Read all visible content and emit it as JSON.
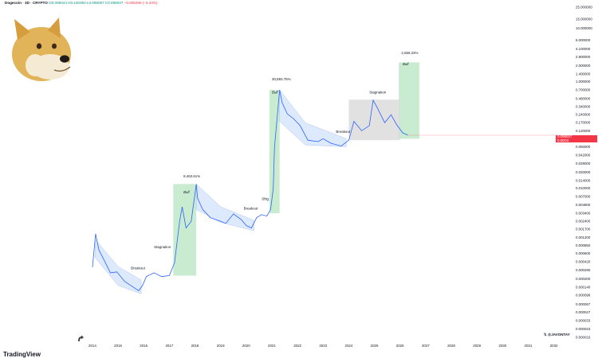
{
  "header": {
    "symbol": "Dogecoin · 3D · CRYPTO",
    "ohlc": "O0.099044 H0.100350 L0.098087 C0.099037",
    "change": "−0.005286 (−5.34%)"
  },
  "branding": {
    "platform": "TradingView",
    "author": "@JAVONTAY"
  },
  "current_price": {
    "label": "0.099037",
    "sub": "0.5D03",
    "color": "#f23645"
  },
  "colors": {
    "price_line": "#2962ff",
    "bull_zone": "#b7e4c0",
    "channel_fill": "#cfe0fb",
    "stagnation_zone": "#d9d9d9"
  },
  "icons": [
    "doge-mascot-icon",
    "tradingview-logo-icon",
    "x-logo-icon",
    "replay-icon"
  ],
  "chart_data": {
    "type": "line",
    "title": "Dogecoin · 3D · CRYPTO",
    "y_scale": "log",
    "y_ticks": [
      "25.000000",
      "15.000000",
      "10.000000",
      "6.000000",
      "4.100000",
      "2.900000",
      "2.000000",
      "1.400000",
      "1.000000",
      "0.700000",
      "0.480000",
      "0.340000",
      "0.240000",
      "0.170000",
      "0.120000",
      "0.086000",
      "0.060000",
      "0.042000",
      "0.029000",
      "0.020000",
      "0.014000",
      "0.010000",
      "0.007000",
      "0.004900",
      "0.003400",
      "0.002400",
      "0.001700",
      "0.001200",
      "0.000850",
      "0.000600",
      "0.000420",
      "0.000290",
      "0.000200",
      "0.000140",
      "0.000099",
      "0.000067",
      "0.000047",
      "0.000033",
      "0.000023",
      "0.000016"
    ],
    "x_ticks": [
      "2014",
      "2015",
      "2016",
      "2017",
      "2018",
      "2019",
      "2020",
      "2021",
      "2022",
      "2023",
      "2024",
      "2025",
      "2026",
      "2027",
      "2028",
      "2029",
      "2030",
      "2031",
      "2032"
    ],
    "series": [
      {
        "points": [
          [
            2014.0,
            0.00033
          ],
          [
            2014.12,
            0.0014
          ],
          [
            2014.25,
            0.0007
          ],
          [
            2014.45,
            0.00045
          ],
          [
            2014.7,
            0.00026
          ],
          [
            2014.95,
            0.00027
          ],
          [
            2015.25,
            0.00018
          ],
          [
            2015.5,
            0.00015
          ],
          [
            2015.8,
            0.00012
          ],
          [
            2015.95,
            0.00015
          ],
          [
            2016.1,
            0.00022
          ],
          [
            2016.4,
            0.00026
          ],
          [
            2016.7,
            0.00022
          ],
          [
            2017.0,
            0.00023
          ],
          [
            2017.2,
            0.0004
          ],
          [
            2017.4,
            0.0024
          ],
          [
            2017.5,
            0.0045
          ],
          [
            2017.65,
            0.0018
          ],
          [
            2017.85,
            0.0024
          ],
          [
            2018.05,
            0.012
          ],
          [
            2018.1,
            0.0065
          ],
          [
            2018.3,
            0.004
          ],
          [
            2018.6,
            0.0028
          ],
          [
            2018.9,
            0.0025
          ],
          [
            2019.2,
            0.0022
          ],
          [
            2019.5,
            0.0033
          ],
          [
            2019.8,
            0.0026
          ],
          [
            2020.0,
            0.002
          ],
          [
            2020.2,
            0.0018
          ],
          [
            2020.4,
            0.0028
          ],
          [
            2020.6,
            0.0032
          ],
          [
            2020.8,
            0.003
          ],
          [
            2020.95,
            0.004
          ],
          [
            2021.05,
            0.01
          ],
          [
            2021.1,
            0.06
          ],
          [
            2021.3,
            0.7
          ],
          [
            2021.4,
            0.4
          ],
          [
            2021.6,
            0.25
          ],
          [
            2021.85,
            0.2
          ],
          [
            2022.1,
            0.15
          ],
          [
            2022.4,
            0.08
          ],
          [
            2022.8,
            0.075
          ],
          [
            2023.0,
            0.085
          ],
          [
            2023.3,
            0.07
          ],
          [
            2023.7,
            0.062
          ],
          [
            2024.0,
            0.08
          ],
          [
            2024.2,
            0.18
          ],
          [
            2024.5,
            0.12
          ],
          [
            2024.8,
            0.15
          ],
          [
            2024.95,
            0.45
          ],
          [
            2025.1,
            0.33
          ],
          [
            2025.4,
            0.17
          ],
          [
            2025.65,
            0.24
          ],
          [
            2025.85,
            0.16
          ],
          [
            2026.1,
            0.11
          ],
          [
            2026.3,
            0.099037
          ]
        ]
      }
    ],
    "annotations": [
      {
        "text": "Stagnation",
        "kind": "stagnation"
      },
      {
        "text": "Breakout",
        "kind": "breakout"
      },
      {
        "text": "8,463.61%",
        "kind": "gain"
      },
      {
        "text": "Bull",
        "kind": "bull"
      },
      {
        "text": "Breakout",
        "kind": "breakout"
      },
      {
        "text": "Shlg",
        "kind": "label"
      },
      {
        "text": "30,893.75%",
        "kind": "gain"
      },
      {
        "text": "Bull",
        "kind": "bull"
      },
      {
        "text": "Breakout",
        "kind": "breakout"
      },
      {
        "text": "Stagnation",
        "kind": "stagnation"
      },
      {
        "text": "2,659.23%",
        "kind": "gain"
      },
      {
        "text": "Bull",
        "kind": "bull"
      }
    ],
    "grid": false,
    "legend": "none"
  }
}
